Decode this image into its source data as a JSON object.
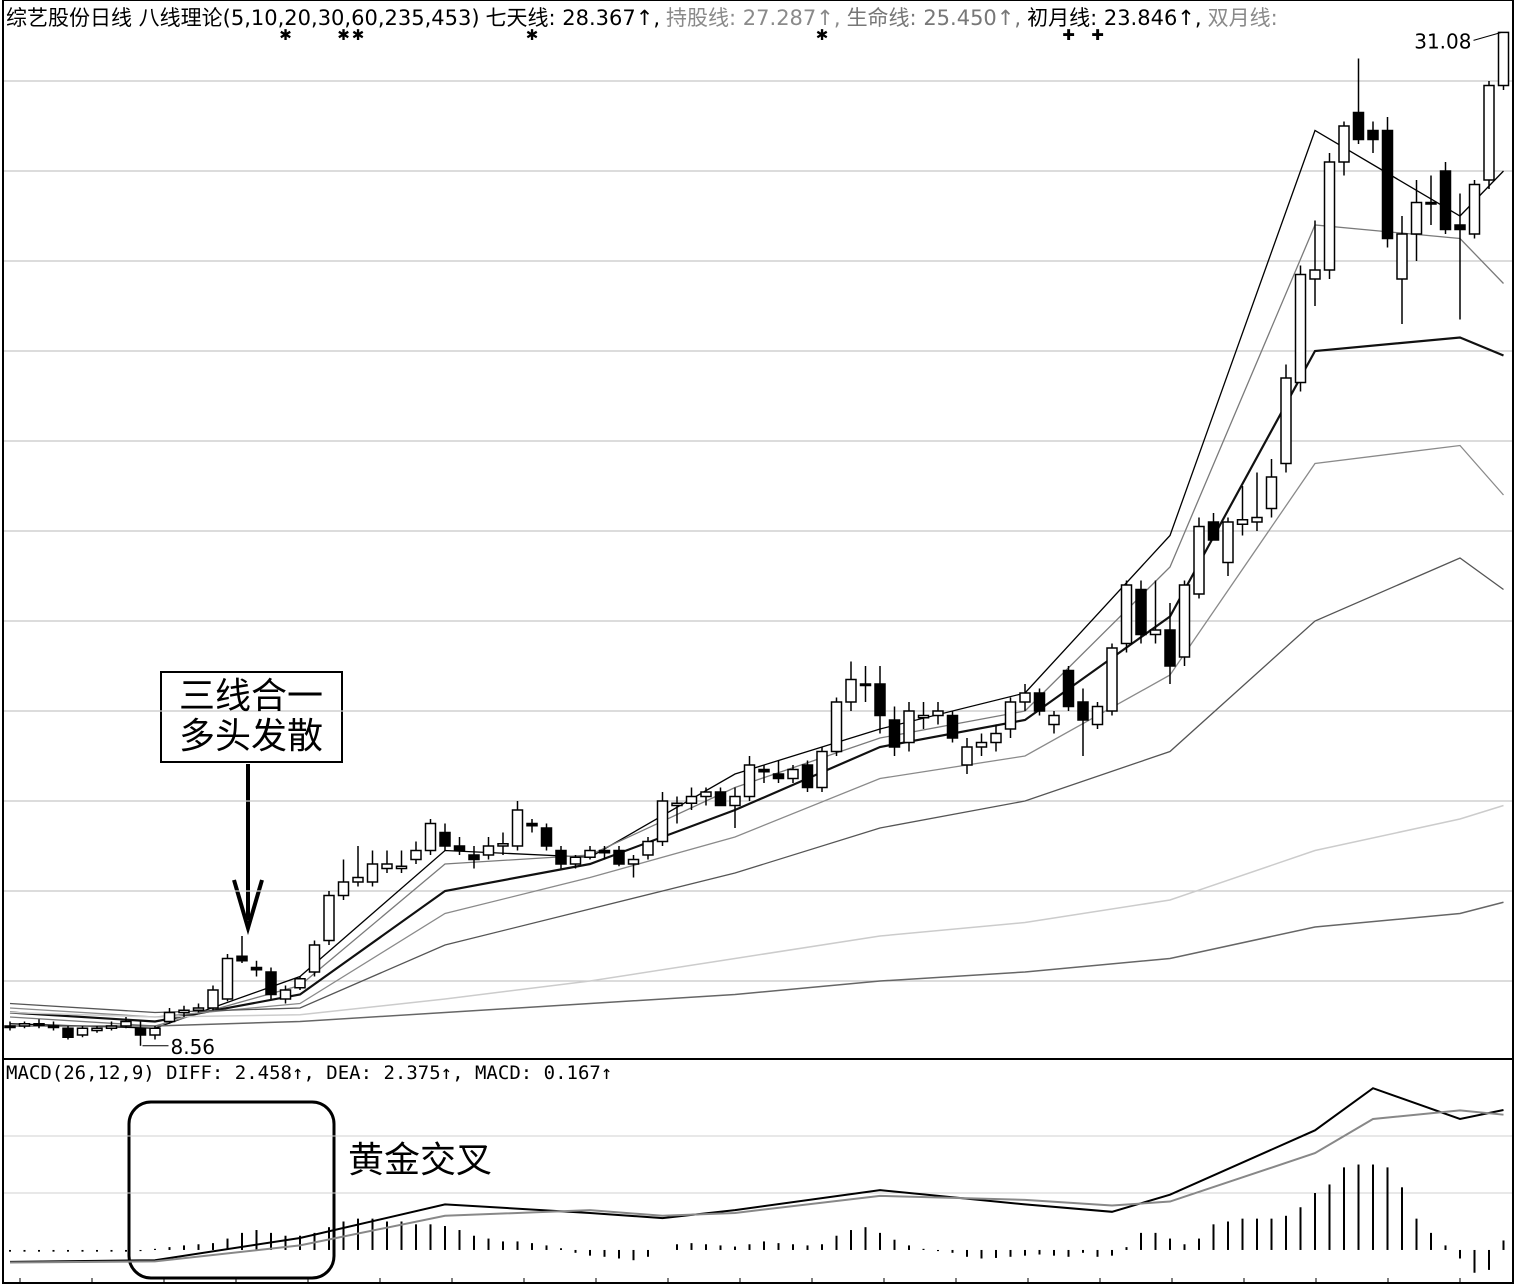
{
  "chart_data": [
    {
      "type": "candlestick",
      "title": "综艺股份日线 八线理论(5,10,20,30,60,235,453)",
      "legend": [
        {
          "name": "七天线: 28.367↑,",
          "color": "#000000"
        },
        {
          "name": "持股线: 27.287↑,",
          "color": "#8a8a8a"
        },
        {
          "name": "生命线: 25.450↑,",
          "color": "#777777"
        },
        {
          "name": "初月线: 23.846↑,",
          "color": "#000000"
        },
        {
          "name": "双月线:",
          "color": "#8a8a8a"
        }
      ],
      "open": [
        9.0,
        9.0,
        9.05,
        9.0,
        8.95,
        8.8,
        8.9,
        8.95,
        9.0,
        8.95,
        8.8,
        9.1,
        9.3,
        9.35,
        9.4,
        9.6,
        10.55,
        10.3,
        10.2,
        9.6,
        9.85,
        10.2,
        10.9,
        11.9,
        12.2,
        12.2,
        12.5,
        12.5,
        12.7,
        12.9,
        13.3,
        13.0,
        12.8,
        12.8,
        13.0,
        13.0,
        13.5,
        13.4,
        12.9,
        12.6,
        12.75,
        12.9,
        12.9,
        12.6,
        12.8,
        13.1,
        13.9,
        13.95,
        14.1,
        14.2,
        13.9,
        14.1,
        14.7,
        14.6,
        14.5,
        14.8,
        14.3,
        15.1,
        16.2,
        16.6,
        16.6,
        15.8,
        15.3,
        15.85,
        15.9,
        15.9,
        14.8,
        15.2,
        15.3,
        15.6,
        16.2,
        16.4,
        15.7,
        16.9,
        16.2,
        15.7,
        16.0,
        17.5,
        18.7,
        17.7,
        17.8,
        17.2,
        18.6,
        20.2,
        19.3,
        20.15,
        20.2,
        20.5,
        21.5,
        23.3,
        25.6,
        25.8,
        28.2,
        29.3,
        28.9,
        28.9,
        25.6,
        26.6,
        27.3,
        28.0,
        26.8,
        26.6,
        27.8,
        29.9
      ],
      "high": [
        9.1,
        9.1,
        9.15,
        9.1,
        9.0,
        9.0,
        9.0,
        9.1,
        9.2,
        9.1,
        9.0,
        9.4,
        9.45,
        9.5,
        9.9,
        10.6,
        11.0,
        10.45,
        10.3,
        9.9,
        10.1,
        10.9,
        12.0,
        12.7,
        13.0,
        12.9,
        12.9,
        12.9,
        13.1,
        13.6,
        13.5,
        13.2,
        13.0,
        13.2,
        13.3,
        14.0,
        13.6,
        13.5,
        13.0,
        12.8,
        13.0,
        13.0,
        13.0,
        12.8,
        13.2,
        14.2,
        14.1,
        14.3,
        14.3,
        14.3,
        14.3,
        15.0,
        14.8,
        14.9,
        14.8,
        14.9,
        15.2,
        16.3,
        17.1,
        17.0,
        17.0,
        16.1,
        16.2,
        16.2,
        16.2,
        16.0,
        15.4,
        15.5,
        15.7,
        16.3,
        16.6,
        16.5,
        16.0,
        17.0,
        16.5,
        16.2,
        17.5,
        18.9,
        18.9,
        18.9,
        18.4,
        18.9,
        20.3,
        20.4,
        20.3,
        21.0,
        21.3,
        21.6,
        23.7,
        25.9,
        26.9,
        28.4,
        29.1,
        30.5,
        29.1,
        29.2,
        27.0,
        27.8,
        27.9,
        28.2,
        27.5,
        27.8,
        30.0,
        31.08
      ],
      "low": [
        8.9,
        8.95,
        8.95,
        8.9,
        8.7,
        8.75,
        8.85,
        8.9,
        8.95,
        8.56,
        8.7,
        9.05,
        9.2,
        9.3,
        9.35,
        9.55,
        10.4,
        10.1,
        9.6,
        9.5,
        9.8,
        10.1,
        10.8,
        11.8,
        12.1,
        12.1,
        12.4,
        12.4,
        12.6,
        12.8,
        12.9,
        12.8,
        12.5,
        12.7,
        12.8,
        12.9,
        13.3,
        12.9,
        12.5,
        12.5,
        12.7,
        12.7,
        12.55,
        12.3,
        12.7,
        13.0,
        13.5,
        13.8,
        13.9,
        13.9,
        13.4,
        14.0,
        14.4,
        14.4,
        14.4,
        14.2,
        14.2,
        15.0,
        16.0,
        16.2,
        15.5,
        15.0,
        15.1,
        15.6,
        15.7,
        15.3,
        14.6,
        15.0,
        15.1,
        15.4,
        16.0,
        15.9,
        15.5,
        16.0,
        15.0,
        15.6,
        15.9,
        17.3,
        17.5,
        17.5,
        16.6,
        17.0,
        18.5,
        19.8,
        19.0,
        19.9,
        20.0,
        20.3,
        21.3,
        23.1,
        25.0,
        25.6,
        27.9,
        28.6,
        28.4,
        26.3,
        24.6,
        26.0,
        26.8,
        26.6,
        24.7,
        26.5,
        27.6,
        29.8
      ],
      "close": [
        9.0,
        9.05,
        9.05,
        9.0,
        8.75,
        8.95,
        8.95,
        9.0,
        9.1,
        8.8,
        8.95,
        9.3,
        9.35,
        9.4,
        9.8,
        10.5,
        10.45,
        10.25,
        9.7,
        9.8,
        10.05,
        10.8,
        11.9,
        12.2,
        12.3,
        12.6,
        12.6,
        12.55,
        12.9,
        13.5,
        13.0,
        12.9,
        12.7,
        13.0,
        13.05,
        13.8,
        13.45,
        13.0,
        12.6,
        12.75,
        12.9,
        12.85,
        12.6,
        12.7,
        13.1,
        14.0,
        13.95,
        14.1,
        14.2,
        13.9,
        14.1,
        14.8,
        14.65,
        14.5,
        14.7,
        14.3,
        15.1,
        16.2,
        16.7,
        16.6,
        15.9,
        15.2,
        16.0,
        15.9,
        16.0,
        15.4,
        15.2,
        15.3,
        15.5,
        16.2,
        16.4,
        16.0,
        15.9,
        16.1,
        15.8,
        16.1,
        17.4,
        18.8,
        17.7,
        17.8,
        17.0,
        18.8,
        20.1,
        19.8,
        20.2,
        20.25,
        20.3,
        21.2,
        23.4,
        25.7,
        25.8,
        28.2,
        29.0,
        28.7,
        28.7,
        26.5,
        26.6,
        27.3,
        27.3,
        26.7,
        26.7,
        27.7,
        29.9,
        31.08
      ],
      "lines": [
        {
          "color": "#000000",
          "width": 1.3,
          "x": [
            0,
            10,
            20,
            30,
            40,
            50,
            60,
            70,
            80,
            90,
            100,
            103
          ],
          "values": [
            9.05,
            8.95,
            10.1,
            12.9,
            12.75,
            14.6,
            15.6,
            16.4,
            19.9,
            28.9,
            27.0,
            28.0
          ]
        },
        {
          "color": "#7a7a7a",
          "width": 1.3,
          "x": [
            0,
            10,
            20,
            30,
            40,
            50,
            60,
            70,
            80,
            90,
            100,
            103
          ],
          "values": [
            9.2,
            9.0,
            9.9,
            12.6,
            12.8,
            14.3,
            15.4,
            16.0,
            19.2,
            26.8,
            26.5,
            25.5
          ]
        },
        {
          "color": "#111111",
          "width": 2.2,
          "x": [
            0,
            10,
            20,
            30,
            40,
            50,
            60,
            70,
            80,
            90,
            100,
            103
          ],
          "values": [
            9.3,
            9.1,
            9.7,
            12.0,
            12.6,
            13.8,
            15.2,
            15.8,
            18.1,
            24.0,
            24.3,
            23.9
          ]
        },
        {
          "color": "#8a8a8a",
          "width": 1.3,
          "x": [
            0,
            10,
            20,
            30,
            40,
            50,
            60,
            70,
            80,
            90,
            100,
            103
          ],
          "values": [
            9.4,
            9.2,
            9.5,
            11.5,
            12.3,
            13.2,
            14.5,
            15.0,
            16.8,
            21.5,
            21.9,
            20.8
          ]
        },
        {
          "color": "#555555",
          "width": 1.3,
          "x": [
            0,
            10,
            20,
            30,
            40,
            50,
            60,
            70,
            80,
            90,
            100,
            103
          ],
          "values": [
            9.5,
            9.3,
            9.4,
            10.8,
            11.6,
            12.4,
            13.4,
            14.0,
            15.1,
            18.0,
            19.4,
            18.7
          ]
        },
        {
          "color": "#cccccc",
          "width": 1.5,
          "x": [
            0,
            10,
            20,
            30,
            40,
            50,
            60,
            70,
            80,
            90,
            100,
            103
          ],
          "values": [
            9.3,
            9.2,
            9.25,
            9.6,
            10.0,
            10.5,
            11.0,
            11.3,
            11.8,
            12.9,
            13.6,
            13.9
          ]
        },
        {
          "color": "#666666",
          "width": 1.5,
          "x": [
            0,
            10,
            20,
            30,
            40,
            50,
            60,
            70,
            80,
            90,
            100,
            103
          ],
          "values": [
            9.0,
            9.0,
            9.1,
            9.3,
            9.5,
            9.7,
            10.0,
            10.2,
            10.5,
            11.2,
            11.5,
            11.75
          ]
        }
      ],
      "ylim": [
        8.3,
        31.8
      ],
      "yticks": [
        10,
        12,
        14,
        16,
        18,
        20,
        22,
        24,
        26,
        28,
        30
      ],
      "grid": true,
      "signals": [
        {
          "symbol": "✱",
          "at": [
            19,
            23,
            24,
            36,
            56
          ]
        },
        {
          "symbol": "✚",
          "at": [
            73,
            75
          ]
        }
      ],
      "high_label": "31.08",
      "low_label": "8.56",
      "annotation": [
        "三线合一",
        "多头发散"
      ]
    },
    {
      "type": "macd",
      "title": "MACD(26,12,9) DIFF: 2.458↑, DEA: 2.375↑, MACD: 0.167↑",
      "histogram": [
        -0.03,
        -0.03,
        -0.03,
        -0.03,
        -0.03,
        -0.03,
        -0.03,
        -0.03,
        -0.03,
        -0.02,
        0.02,
        0.05,
        0.08,
        0.1,
        0.12,
        0.2,
        0.3,
        0.35,
        0.3,
        0.25,
        0.25,
        0.3,
        0.4,
        0.5,
        0.55,
        0.55,
        0.5,
        0.5,
        0.45,
        0.45,
        0.42,
        0.35,
        0.25,
        0.2,
        0.15,
        0.15,
        0.12,
        0.08,
        0.03,
        -0.05,
        -0.1,
        -0.12,
        -0.15,
        -0.18,
        -0.12,
        0.0,
        0.1,
        0.12,
        0.1,
        0.08,
        0.06,
        0.1,
        0.15,
        0.12,
        0.1,
        0.08,
        0.1,
        0.25,
        0.35,
        0.4,
        0.3,
        0.18,
        0.08,
        0.02,
        -0.02,
        -0.05,
        -0.12,
        -0.15,
        -0.14,
        -0.12,
        -0.1,
        -0.08,
        -0.1,
        -0.12,
        -0.05,
        -0.12,
        -0.1,
        0.05,
        0.3,
        0.3,
        0.2,
        0.1,
        0.2,
        0.45,
        0.5,
        0.55,
        0.55,
        0.55,
        0.6,
        0.75,
        1.0,
        1.15,
        1.45,
        1.5,
        1.5,
        1.45,
        1.1,
        0.55,
        0.3,
        0.08,
        -0.15,
        -0.4,
        -0.35,
        0.167
      ],
      "series": [
        {
          "color": "#000000",
          "x": [
            0,
            10,
            20,
            30,
            40,
            45,
            50,
            60,
            70,
            76,
            80,
            90,
            94,
            100,
            103
          ],
          "values": [
            -0.21,
            -0.18,
            0.21,
            0.8,
            0.65,
            0.56,
            0.7,
            1.05,
            0.8,
            0.67,
            0.97,
            2.1,
            2.84,
            2.3,
            2.458
          ]
        },
        {
          "color": "#888888",
          "x": [
            0,
            10,
            20,
            30,
            40,
            45,
            50,
            60,
            70,
            76,
            80,
            90,
            94,
            100,
            103
          ],
          "values": [
            -0.22,
            -0.2,
            0.08,
            0.6,
            0.7,
            0.6,
            0.65,
            0.95,
            0.88,
            0.78,
            0.85,
            1.7,
            2.3,
            2.45,
            2.375
          ]
        }
      ],
      "ylim": [
        -0.58,
        3.3
      ],
      "yticks": [
        1,
        2
      ],
      "grid": true,
      "annotation": "黄金交叉"
    }
  ]
}
